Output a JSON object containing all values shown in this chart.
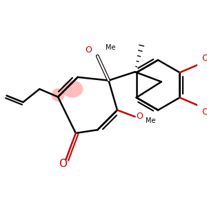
{
  "bg_color": "#ffffff",
  "bond_color": "#000000",
  "oxygen_color": "#cc0000",
  "highlight_color": "#ff9999",
  "lw": 1.8,
  "figsize": [
    3.0,
    3.0
  ],
  "dpi": 100,
  "xlim": [
    0,
    300
  ],
  "ylim": [
    0,
    300
  ]
}
